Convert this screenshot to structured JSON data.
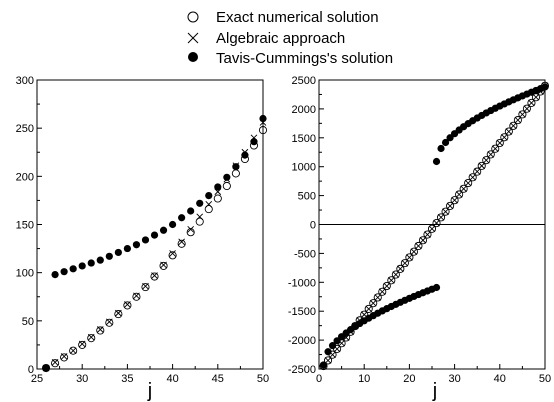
{
  "chart_data": [
    {
      "type": "scatter",
      "xlabel": "j",
      "ylabel": "",
      "xlim": [
        25,
        50
      ],
      "ylim": [
        0,
        300
      ],
      "xticks": [
        25,
        30,
        35,
        40,
        45,
        50
      ],
      "yticks": [
        0,
        50,
        100,
        150,
        200,
        250,
        300
      ],
      "grid": false,
      "series": [
        {
          "name": "Exact numerical solution",
          "marker": "open-circle",
          "x": [
            26,
            27,
            28,
            29,
            30,
            31,
            32,
            33,
            34,
            35,
            36,
            37,
            38,
            39,
            40,
            41,
            42,
            43,
            44,
            45,
            46,
            47,
            48,
            49,
            50
          ],
          "values": [
            1,
            6,
            12,
            19,
            25,
            32,
            40,
            48,
            57,
            66,
            75,
            85,
            96,
            107,
            118,
            130,
            142,
            153,
            166,
            177,
            190,
            203,
            218,
            232,
            248
          ]
        },
        {
          "name": "Algebraic approach",
          "marker": "cross",
          "x": [
            26,
            27,
            28,
            29,
            30,
            31,
            32,
            33,
            34,
            35,
            36,
            37,
            38,
            39,
            40,
            41,
            42,
            43,
            44,
            45,
            46,
            47,
            48,
            49,
            50
          ],
          "values": [
            1,
            7,
            13,
            19,
            26,
            33,
            41,
            49,
            58,
            67,
            76,
            86,
            97,
            108,
            120,
            132,
            145,
            158,
            171,
            184,
            197,
            211,
            225,
            240,
            256
          ]
        },
        {
          "name": "Tavis-Cummings's solution",
          "marker": "filled-circle",
          "x": [
            26,
            27,
            28,
            29,
            30,
            31,
            32,
            33,
            34,
            35,
            36,
            37,
            38,
            39,
            40,
            41,
            42,
            43,
            44,
            45,
            46,
            47,
            48,
            49,
            50
          ],
          "values": [
            1,
            98,
            101,
            104,
            107,
            110,
            113,
            117,
            121,
            125,
            129,
            134,
            139,
            144,
            150,
            157,
            164,
            172,
            180,
            189,
            199,
            210,
            222,
            236,
            260
          ]
        }
      ]
    },
    {
      "type": "scatter",
      "xlabel": "j",
      "ylabel": "",
      "xlim": [
        0,
        50
      ],
      "ylim": [
        -2500,
        2500
      ],
      "xticks": [
        0,
        10,
        20,
        30,
        40,
        50
      ],
      "yticks": [
        -2500,
        -2000,
        -1500,
        -1000,
        -500,
        0,
        500,
        1000,
        1500,
        2000,
        2500
      ],
      "grid": false,
      "zero_line": true,
      "series": [
        {
          "name": "Exact numerical solution",
          "marker": "open-circle",
          "x_start": 1,
          "x_end": 50,
          "y_start": -2450,
          "y_end": 2400
        },
        {
          "name": "Algebraic approach",
          "marker": "cross",
          "x_start": 1,
          "x_end": 50,
          "y_start": -2450,
          "y_end": 2400
        },
        {
          "name": "Tavis-Cummings's solution",
          "marker": "filled-circle",
          "segments": [
            {
              "x_start": 1,
              "x_end": 26,
              "y_start": -2430,
              "y_end": -1090,
              "curve": 0.55
            },
            {
              "x_start": 26,
              "x_end": 50,
              "y_start": 1090,
              "y_end": 2380,
              "curve": 0.55
            }
          ]
        }
      ]
    }
  ],
  "legend": {
    "placement": "top-center",
    "entries": [
      {
        "marker": "open-circle",
        "label": "Exact numerical solution"
      },
      {
        "marker": "cross",
        "label": "Algebraic approach"
      },
      {
        "marker": "filled-circle",
        "label": "Tavis-Cummings's solution"
      }
    ]
  }
}
